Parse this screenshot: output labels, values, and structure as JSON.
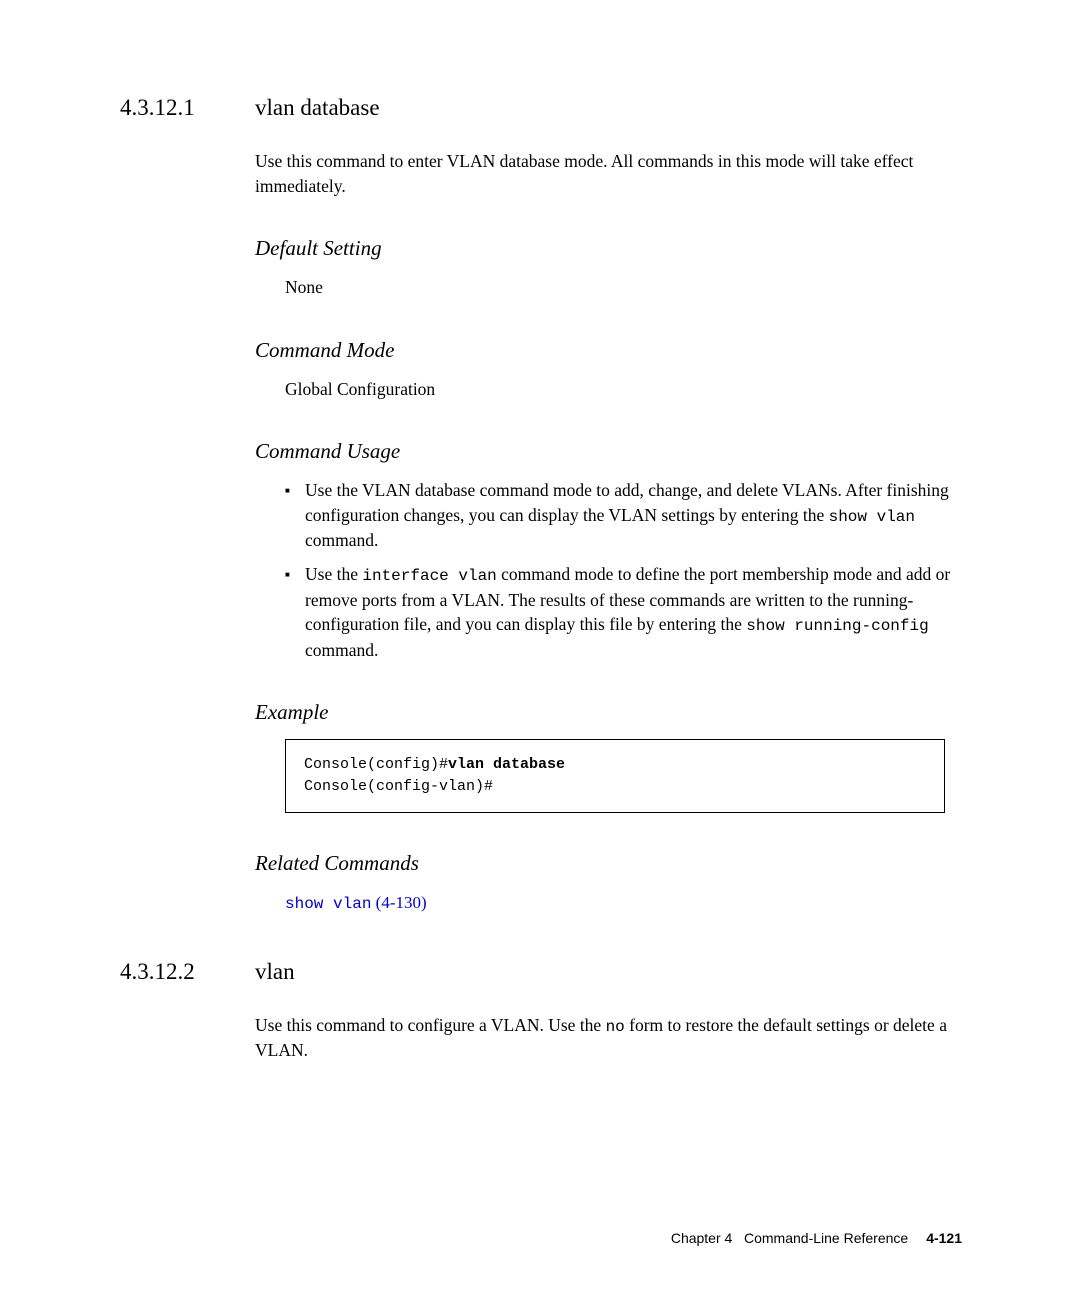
{
  "section1": {
    "number": "4.3.12.1",
    "title": "vlan database",
    "intro": "Use this command to enter VLAN database mode. All commands in this mode will take effect immediately.",
    "default_setting": {
      "heading": "Default Setting",
      "text": "None"
    },
    "command_mode": {
      "heading": "Command Mode",
      "text": "Global Configuration"
    },
    "command_usage": {
      "heading": "Command Usage",
      "bullets": [
        {
          "pre1": "Use the VLAN database command mode to add, change, and delete VLANs. After finishing configuration changes, you can display the VLAN settings by entering the ",
          "mono1": "show vlan",
          "post1": " command."
        },
        {
          "pre1": "Use the ",
          "mono1": "interface vlan",
          "mid1": " command mode to define the port membership mode and add or remove ports from a VLAN. The results of these commands are written to the running-configuration file, and you can display this file by entering the ",
          "mono2": "show running-config",
          "post1": " command."
        }
      ]
    },
    "example": {
      "heading": "Example",
      "code": {
        "line1_pre": "Console(config)#",
        "line1_bold": "vlan database",
        "line2": "Console(config-vlan)#"
      }
    },
    "related": {
      "heading": "Related Commands",
      "link_cmd": "show vlan",
      "link_ref": " (4-130)"
    }
  },
  "section2": {
    "number": "4.3.12.2",
    "title": "vlan",
    "intro_pre": "Use this command to configure a VLAN. Use the ",
    "intro_mono": "no",
    "intro_post": " form to restore the default settings or delete a VLAN."
  },
  "footer": {
    "chapter": "Chapter 4",
    "title": "Command-Line Reference",
    "page": "4-121"
  }
}
